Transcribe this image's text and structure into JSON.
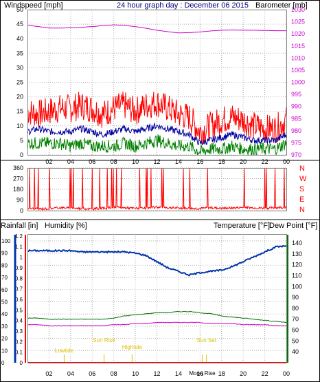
{
  "colors": {
    "wind": "#ff0000",
    "wind_avg": "#0000a0",
    "wind_low": "#008000",
    "barometer": "#cc00cc",
    "rain": "#ff0000",
    "humidity": "#0033aa",
    "temperature": "#007000",
    "dewpoint": "#cc00cc",
    "events": "#e0c000",
    "grid": "#b0b0b0"
  },
  "chart_data": [
    {
      "type": "line",
      "title": "24 hour graph day : December 06 2015",
      "ylabel": "Windspeed [mph]",
      "y2label": "Barometer [mb]",
      "ylim": [
        0,
        50
      ],
      "y2lim": [
        970,
        1030
      ],
      "yticks": [
        "0",
        "5",
        "10",
        "15",
        "20",
        "25",
        "30",
        "35",
        "40",
        "45",
        "50"
      ],
      "y2ticks": [
        "970",
        "975",
        "980",
        "985",
        "990",
        "995",
        "1000",
        "1005",
        "1010",
        "1015",
        "1020",
        "1025",
        "1030"
      ],
      "xticks": [
        "02",
        "04",
        "06",
        "08",
        "10",
        "12",
        "14",
        "16",
        "18",
        "20",
        "22",
        "00"
      ],
      "x": [
        0,
        1,
        2,
        3,
        4,
        5,
        6,
        7,
        8,
        9,
        10,
        11,
        12,
        13,
        14,
        15,
        16,
        17,
        18,
        19,
        20,
        21,
        22,
        23,
        24
      ],
      "series": [
        {
          "key": "wind_gust",
          "values": [
            15,
            14,
            15,
            16,
            16,
            17,
            16,
            14,
            16,
            17,
            15,
            17,
            18,
            16,
            14,
            13,
            8,
            10,
            12,
            13,
            12,
            10,
            9,
            9,
            12
          ]
        },
        {
          "key": "wind_avg",
          "values": [
            8,
            9,
            8,
            8,
            8,
            9,
            8,
            7,
            8,
            9,
            8,
            9,
            10,
            9,
            8,
            7,
            4,
            5,
            6,
            7,
            6,
            5,
            5,
            5,
            7
          ]
        },
        {
          "key": "wind_low",
          "values": [
            4,
            4,
            4,
            4,
            3,
            4,
            3,
            3,
            3,
            4,
            3,
            4,
            5,
            4,
            3,
            3,
            1,
            2,
            2,
            3,
            2,
            2,
            2,
            2,
            4
          ]
        },
        {
          "key": "barometer",
          "axis": "right",
          "values": [
            1023.6,
            1023.0,
            1022.4,
            1022.4,
            1022.5,
            1022.7,
            1023.0,
            1023.4,
            1023.7,
            1023.5,
            1023.0,
            1022.3,
            1021.5,
            1020.9,
            1020.4,
            1020.5,
            1020.8,
            1021.2,
            1021.5,
            1021.6,
            1021.5,
            1021.5,
            1021.4,
            1021.3,
            1021.3
          ]
        }
      ]
    },
    {
      "type": "line",
      "ylim": [
        0,
        360
      ],
      "yticks": [
        "0",
        "90",
        "180",
        "270",
        "360"
      ],
      "compass": [
        "N",
        "W",
        "S",
        "E",
        "N"
      ],
      "xticks": [
        "02",
        "04",
        "06",
        "08",
        "10",
        "12",
        "14",
        "16",
        "18",
        "20",
        "22",
        "00"
      ],
      "x": [
        0,
        1,
        2,
        3,
        4,
        5,
        6,
        7,
        8,
        9,
        10,
        11,
        12,
        13,
        14,
        15,
        16,
        17,
        18,
        19,
        20,
        21,
        22,
        23,
        24
      ],
      "values": [
        20,
        15,
        18,
        25,
        22,
        18,
        15,
        20,
        28,
        24,
        20,
        18,
        30,
        26,
        22,
        20,
        18,
        25,
        20,
        22,
        28,
        24,
        20,
        25,
        30
      ]
    },
    {
      "type": "line",
      "ylabel": "Rainfall [in]",
      "ylabel2": "Humidity [%]",
      "y3label": "Temperature [°F]",
      "y4label": "Dew Point [°F]",
      "rain_ticks": [
        "0",
        "0.1",
        "0.2",
        "0.3",
        "0.4",
        "0.5",
        "0.6",
        "0.7",
        "0.8",
        "0.9",
        "1",
        "1.1",
        "1.2"
      ],
      "humidity_ticks": [
        "0",
        "10",
        "20",
        "30",
        "40",
        "50",
        "60",
        "70",
        "80",
        "90",
        "100"
      ],
      "temp_ticks": [
        "40",
        "50",
        "60",
        "70",
        "80",
        "90",
        "100",
        "110",
        "120",
        "130",
        "140"
      ],
      "temp_range": [
        30,
        140
      ],
      "xticks": [
        "02",
        "04",
        "06",
        "08",
        "10",
        "12",
        "14",
        "16",
        "18",
        "20",
        "22",
        "00"
      ],
      "x": [
        0,
        1,
        2,
        3,
        4,
        5,
        6,
        7,
        8,
        9,
        10,
        11,
        12,
        13,
        14,
        15,
        16,
        17,
        18,
        19,
        20,
        21,
        22,
        23,
        24
      ],
      "series": [
        {
          "key": "humidity",
          "values": [
            92,
            92,
            92,
            92,
            92,
            91,
            91,
            91,
            91,
            91,
            90,
            88,
            83,
            78,
            75,
            72,
            74,
            75,
            76,
            79,
            83,
            87,
            91,
            95,
            96
          ]
        },
        {
          "key": "temperature",
          "values": [
            71,
            71,
            70,
            70,
            70,
            70,
            70,
            70,
            71,
            73,
            74,
            75,
            76,
            76,
            77,
            77,
            76,
            75,
            73,
            72,
            71,
            70,
            69,
            68,
            67
          ]
        },
        {
          "key": "dewpoint",
          "values": [
            65,
            65,
            64,
            64,
            64,
            64,
            64,
            64,
            65,
            65,
            66,
            66,
            67,
            67,
            67,
            67,
            67,
            66,
            66,
            66,
            65,
            65,
            65,
            64,
            64
          ]
        },
        {
          "key": "rainfall",
          "values": [
            0,
            0,
            0,
            0,
            0,
            0,
            0,
            0,
            0,
            0,
            0,
            0,
            0,
            0,
            0,
            0,
            0,
            0,
            0,
            0,
            0,
            0,
            0,
            0,
            0
          ]
        }
      ],
      "events": [
        {
          "label": "Lowtide",
          "x": 3.4
        },
        {
          "label": "Sun Rise",
          "x": 7.1
        },
        {
          "label": "Hightide",
          "x": 9.7
        },
        {
          "label": "Sun Set",
          "x": 16.6
        },
        {
          "label": "Moon Rise",
          "x": 16.2
        }
      ]
    }
  ]
}
